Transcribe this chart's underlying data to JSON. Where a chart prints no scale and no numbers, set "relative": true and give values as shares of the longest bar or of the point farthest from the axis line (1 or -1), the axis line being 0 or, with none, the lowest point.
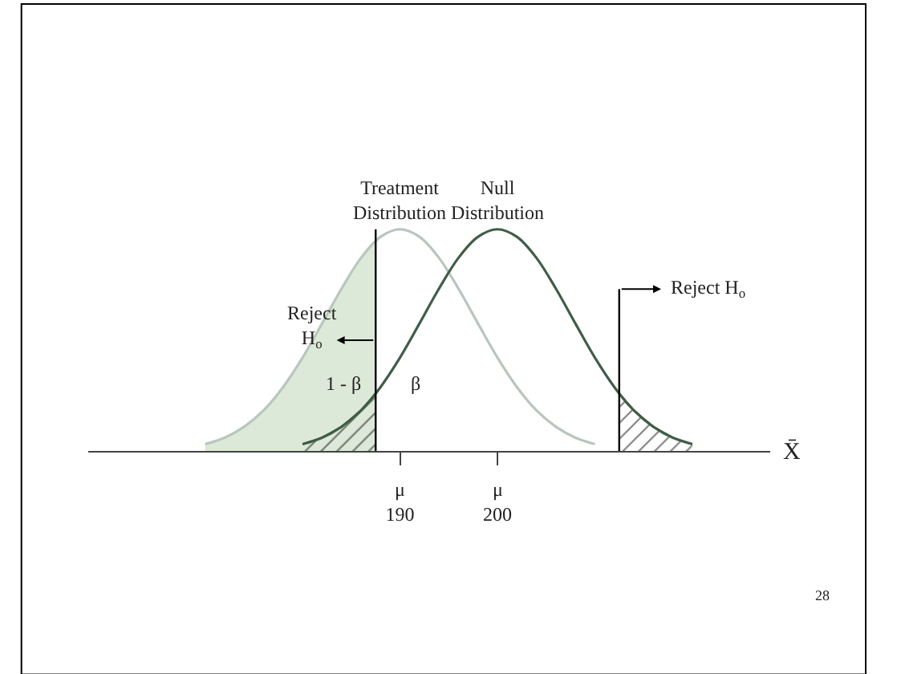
{
  "chart_data": {
    "type": "line",
    "relative": true,
    "xlabel": "X̄",
    "xlim": [
      158,
      228
    ],
    "xticks": [
      190,
      200
    ],
    "tick_labels": "x",
    "legend": false,
    "marker": "none",
    "line_style": "solid",
    "series": [
      {
        "type": "area",
        "color": "#dde9d8",
        "x": [
          170,
          172,
          174,
          176,
          178,
          180,
          182,
          184,
          186,
          187.5
        ],
        "values": [
          0.031,
          0.06,
          0.109,
          0.183,
          0.288,
          0.421,
          0.575,
          0.732,
          0.871,
          0.947
        ]
      },
      {
        "type": "area",
        "color": "#000000",
        "x": [
          180,
          182,
          184,
          186,
          187.5
        ],
        "values": [
          0.031,
          0.06,
          0.109,
          0.183,
          0.259
        ]
      },
      {
        "type": "area",
        "color": "#000000",
        "x": [
          212.5,
          214,
          216,
          218,
          220
        ],
        "values": [
          0.259,
          0.183,
          0.109,
          0.06,
          0.031
        ]
      },
      {
        "name": "Treatment\nDistribution",
        "color": "#b9c6bd",
        "x": [
          170,
          172,
          174,
          176,
          178,
          180,
          182,
          184,
          186,
          188,
          190,
          192,
          194,
          196,
          198,
          200,
          202,
          204,
          206,
          208,
          210
        ],
        "values": [
          0.031,
          0.06,
          0.109,
          0.183,
          0.288,
          0.421,
          0.575,
          0.732,
          0.871,
          0.966,
          1,
          0.966,
          0.871,
          0.732,
          0.575,
          0.421,
          0.288,
          0.183,
          0.109,
          0.06,
          0.031
        ]
      },
      {
        "name": "Null\nDistribution",
        "color": "#3f5e47",
        "x": [
          180,
          182,
          184,
          186,
          188,
          190,
          192,
          194,
          196,
          198,
          200,
          202,
          204,
          206,
          208,
          210,
          212,
          214,
          216,
          218,
          220
        ],
        "values": [
          0.031,
          0.06,
          0.109,
          0.183,
          0.288,
          0.421,
          0.575,
          0.732,
          0.871,
          0.966,
          1,
          0.966,
          0.871,
          0.732,
          0.575,
          0.421,
          0.288,
          0.183,
          0.109,
          0.06,
          0.031
        ]
      }
    ],
    "ref_lines": [
      {
        "axis": "x",
        "value": 187.5,
        "color": "#000000",
        "label": "Reject\nH$_{o}$"
      },
      {
        "axis": "x",
        "value": 212.5,
        "color": "#000000",
        "label": "Reject H$_{o}$"
      }
    ],
    "annotations": [
      "1 - β",
      "β",
      "28",
      "μ",
      "μ"
    ]
  }
}
